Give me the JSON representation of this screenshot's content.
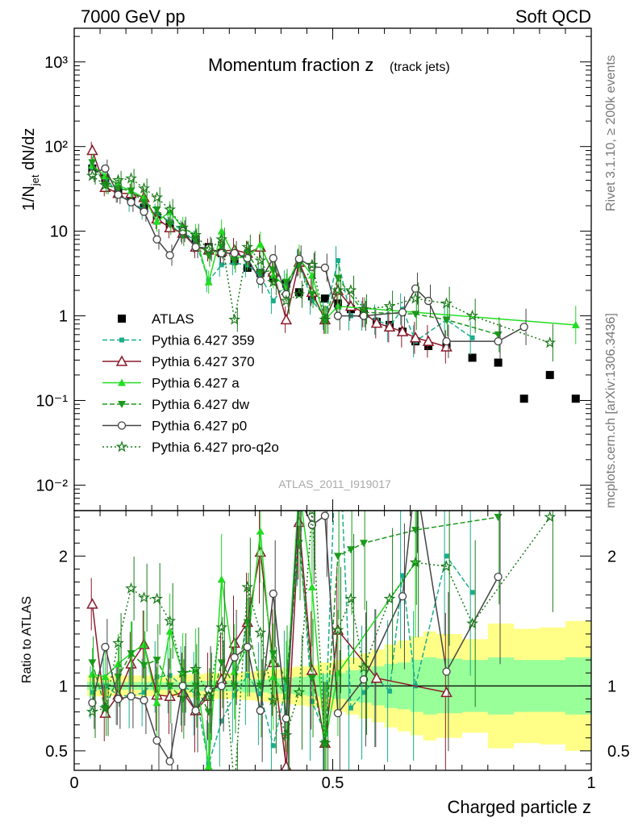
{
  "header": {
    "left": "7000 GeV pp",
    "right": "Soft QCD",
    "side_top": "Rivet 3.1.10, ≥ 200k events",
    "side_bottom": "mcplots.cern.ch [arXiv:1306.3436]",
    "watermark": "ATLAS_2011_I919017"
  },
  "chart_data": [
    {
      "type": "scatter",
      "title": "Momentum fraction z",
      "title_sub": "(track jets)",
      "ylabel": "1/N_jet dN/dz",
      "yscale": "log",
      "ylim": [
        0.005,
        2500
      ],
      "xlim": [
        0,
        1
      ],
      "ytick_labels": [
        "10⁻²",
        "10⁻¹",
        "1",
        "10",
        "10²",
        "10³"
      ],
      "ytick_values": [
        0.01,
        0.1,
        1,
        10,
        100,
        1000
      ],
      "legend_position": "left-middle",
      "series": [
        {
          "name": "ATLAS",
          "color": "#000000",
          "marker": "square",
          "line": "none",
          "x": [
            0.035,
            0.06,
            0.085,
            0.11,
            0.135,
            0.16,
            0.185,
            0.21,
            0.235,
            0.26,
            0.285,
            0.31,
            0.335,
            0.36,
            0.385,
            0.41,
            0.435,
            0.46,
            0.485,
            0.51,
            0.535,
            0.56,
            0.585,
            0.61,
            0.635,
            0.66,
            0.685,
            0.72,
            0.77,
            0.82,
            0.87,
            0.92,
            0.97
          ],
          "y": [
            55,
            42,
            30,
            24,
            19,
            15,
            12,
            10,
            8,
            6.5,
            5.5,
            4.5,
            3.7,
            3.2,
            2.8,
            2.4,
            1.9,
            1.7,
            1.6,
            1.4,
            1.2,
            1.05,
            0.85,
            0.78,
            0.65,
            0.5,
            0.44,
            0.45,
            0.32,
            0.28,
            0.105,
            0.2,
            0.105
          ]
        },
        {
          "name": "Pythia 6.427 359",
          "color": "#1aae8a",
          "marker": "square-small",
          "line": "dashed",
          "x": [
            0.035,
            0.06,
            0.085,
            0.11,
            0.135,
            0.16,
            0.185,
            0.21,
            0.235,
            0.26,
            0.285,
            0.31,
            0.335,
            0.36,
            0.385,
            0.41,
            0.435,
            0.46,
            0.485,
            0.51,
            0.535,
            0.56,
            0.585,
            0.61,
            0.635,
            0.66,
            0.72,
            0.77
          ],
          "y": [
            52,
            42,
            28,
            22,
            18,
            16,
            13,
            10,
            7.5,
            2.6,
            4,
            4.2,
            4,
            3,
            1.5,
            2.4,
            4.2,
            1.5,
            1,
            4.5,
            1,
            1,
            0.9,
            0.75,
            1.2,
            0.5,
            0.9,
            0.55
          ]
        },
        {
          "name": "Pythia 6.427 370",
          "color": "#8b1a2b",
          "marker": "triangle-open",
          "line": "solid",
          "x": [
            0.035,
            0.06,
            0.085,
            0.11,
            0.135,
            0.16,
            0.185,
            0.21,
            0.235,
            0.26,
            0.285,
            0.31,
            0.335,
            0.36,
            0.385,
            0.41,
            0.435,
            0.46,
            0.485,
            0.51,
            0.535,
            0.56,
            0.585,
            0.61,
            0.635,
            0.66,
            0.685,
            0.72
          ],
          "y": [
            90,
            33,
            28,
            28,
            25,
            14,
            11,
            9.5,
            6.5,
            6,
            5.8,
            6,
            5.5,
            6.5,
            3.3,
            0.9,
            4.3,
            1.9,
            0.9,
            2,
            1.3,
            1.1,
            0.82,
            0.74,
            0.65,
            0.55,
            0.5,
            0.43
          ]
        },
        {
          "name": "Pythia 6.427 a",
          "color": "#22dd22",
          "marker": "triangle",
          "line": "solid",
          "x": [
            0.035,
            0.06,
            0.085,
            0.11,
            0.135,
            0.16,
            0.185,
            0.21,
            0.235,
            0.26,
            0.285,
            0.31,
            0.335,
            0.36,
            0.385,
            0.41,
            0.435,
            0.46,
            0.485,
            0.51,
            0.97
          ],
          "y": [
            60,
            45,
            35,
            30,
            25,
            13,
            17,
            11,
            9,
            2.5,
            10,
            5,
            4.8,
            7,
            3,
            2.2,
            4.8,
            3,
            0.9,
            1.3,
            0.78
          ]
        },
        {
          "name": "Pythia 6.427 dw",
          "color": "#1a9a1a",
          "marker": "triangle-down",
          "line": "dashed",
          "x": [
            0.035,
            0.06,
            0.085,
            0.11,
            0.135,
            0.16,
            0.185,
            0.21,
            0.235,
            0.26,
            0.285,
            0.31,
            0.335,
            0.36,
            0.385,
            0.41,
            0.435,
            0.46,
            0.485,
            0.51,
            0.56,
            0.66,
            0.72,
            0.82
          ],
          "y": [
            65,
            35,
            32,
            30,
            22,
            18,
            12,
            9,
            8,
            5.2,
            6.5,
            4.5,
            5.5,
            3.2,
            3.5,
            2.5,
            4,
            1.8,
            0.9,
            2.8,
            1.1,
            1.05,
            0.9,
            0.6
          ]
        },
        {
          "name": "Pythia 6.427 p0",
          "color": "#444444",
          "marker": "circle-open",
          "line": "solid",
          "x": [
            0.035,
            0.06,
            0.085,
            0.11,
            0.135,
            0.16,
            0.185,
            0.21,
            0.235,
            0.26,
            0.285,
            0.31,
            0.335,
            0.36,
            0.385,
            0.41,
            0.435,
            0.46,
            0.485,
            0.51,
            0.56,
            0.635,
            0.66,
            0.685,
            0.72,
            0.82,
            0.87
          ],
          "y": [
            48,
            55,
            27,
            22,
            17,
            8,
            5.2,
            10,
            6.5,
            6.3,
            5.5,
            5.5,
            4.8,
            2.6,
            4.8,
            1.8,
            4.7,
            3.8,
            3.7,
            1,
            1,
            1.1,
            2.1,
            1.5,
            0.5,
            0.5,
            0.74
          ]
        },
        {
          "name": "Pythia 6.427 pro-q2o",
          "color": "#1a7a1a",
          "marker": "star",
          "line": "dotted",
          "x": [
            0.035,
            0.06,
            0.085,
            0.11,
            0.135,
            0.16,
            0.185,
            0.21,
            0.235,
            0.26,
            0.285,
            0.31,
            0.335,
            0.36,
            0.385,
            0.41,
            0.435,
            0.46,
            0.485,
            0.51,
            0.535,
            0.56,
            0.61,
            0.66,
            0.72,
            0.77,
            0.92
          ],
          "y": [
            45,
            35,
            40,
            42,
            32,
            25,
            18,
            11,
            9,
            6,
            8,
            0.9,
            6.5,
            4.5,
            2.5,
            1.5,
            1.8,
            4,
            0.9,
            2,
            2,
            1.2,
            1.3,
            1.6,
            1.4,
            1,
            0.48
          ]
        }
      ]
    },
    {
      "type": "line",
      "ylabel": "Ratio to ATLAS",
      "xlabel": "Charged particle z",
      "xlim": [
        0,
        1
      ],
      "ylim": [
        0.35,
        2.35
      ],
      "xtick_labels": [
        "0",
        "0.5",
        "1"
      ],
      "xtick_values": [
        0,
        0.5,
        1
      ],
      "ytick_labels": [
        "0.5",
        "1",
        "2"
      ],
      "ytick_values": [
        0.5,
        1,
        2
      ],
      "band_outer": {
        "color": "#ffff88",
        "edges": [
          0.025,
          0.05,
          0.075,
          0.1,
          0.125,
          0.15,
          0.175,
          0.2,
          0.225,
          0.25,
          0.275,
          0.3,
          0.325,
          0.35,
          0.375,
          0.4,
          0.425,
          0.45,
          0.475,
          0.5,
          0.525,
          0.55,
          0.575,
          0.6,
          0.625,
          0.65,
          0.675,
          0.7,
          0.75,
          0.8,
          0.85,
          0.9,
          0.95,
          1.0
        ],
        "half": [
          0.08,
          0.08,
          0.08,
          0.08,
          0.08,
          0.08,
          0.08,
          0.09,
          0.09,
          0.1,
          0.1,
          0.1,
          0.11,
          0.12,
          0.13,
          0.14,
          0.15,
          0.16,
          0.18,
          0.2,
          0.22,
          0.25,
          0.28,
          0.32,
          0.35,
          0.38,
          0.42,
          0.4,
          0.36,
          0.48,
          0.44,
          0.45,
          0.5
        ]
      },
      "band_inner": {
        "color": "#99ff99",
        "edges": [
          0.025,
          0.05,
          0.075,
          0.1,
          0.125,
          0.15,
          0.175,
          0.2,
          0.225,
          0.25,
          0.275,
          0.3,
          0.325,
          0.35,
          0.375,
          0.4,
          0.425,
          0.45,
          0.475,
          0.5,
          0.525,
          0.55,
          0.575,
          0.6,
          0.625,
          0.65,
          0.675,
          0.7,
          0.75,
          0.8,
          0.85,
          0.9,
          0.95,
          1.0
        ],
        "half": [
          0.03,
          0.03,
          0.03,
          0.03,
          0.03,
          0.03,
          0.03,
          0.03,
          0.04,
          0.04,
          0.04,
          0.04,
          0.05,
          0.05,
          0.06,
          0.06,
          0.07,
          0.08,
          0.09,
          0.1,
          0.12,
          0.13,
          0.15,
          0.17,
          0.18,
          0.2,
          0.22,
          0.21,
          0.2,
          0.22,
          0.2,
          0.2,
          0.22
        ]
      },
      "series": [
        {
          "name": "Pythia 6.427 359",
          "color": "#1aae8a",
          "line": "dashed",
          "x": [
            0.035,
            0.06,
            0.085,
            0.11,
            0.135,
            0.16,
            0.185,
            0.21,
            0.235,
            0.26,
            0.285,
            0.31,
            0.335,
            0.36,
            0.385,
            0.41,
            0.435,
            0.46,
            0.485,
            0.51,
            0.535,
            0.56,
            0.585,
            0.61,
            0.635,
            0.66,
            0.72,
            0.77
          ],
          "y": [
            0.95,
            1.0,
            0.93,
            0.92,
            0.95,
            1.07,
            1.08,
            1.0,
            0.94,
            0.4,
            0.73,
            0.93,
            1.08,
            0.94,
            0.54,
            1.0,
            2.21,
            0.88,
            0.63,
            3.2,
            0.83,
            0.95,
            1.06,
            0.96,
            1.85,
            1.0,
            2.0,
            1.72
          ]
        },
        {
          "name": "Pythia 6.427 370",
          "color": "#8b1a2b",
          "line": "solid",
          "x": [
            0.035,
            0.06,
            0.085,
            0.11,
            0.135,
            0.16,
            0.185,
            0.21,
            0.235,
            0.26,
            0.285,
            0.31,
            0.335,
            0.36,
            0.385,
            0.41,
            0.435,
            0.46,
            0.485,
            0.51,
            0.585,
            0.72
          ],
          "y": [
            1.63,
            0.79,
            0.93,
            1.17,
            1.32,
            0.93,
            0.92,
            0.95,
            0.81,
            0.92,
            1.05,
            1.33,
            1.49,
            2.03,
            1.18,
            0.38,
            2.26,
            1.12,
            0.56,
            1.43,
            1.06,
            0.95
          ]
        },
        {
          "name": "Pythia 6.427 a",
          "color": "#22dd22",
          "line": "solid",
          "x": [
            0.035,
            0.06,
            0.085,
            0.11,
            0.135,
            0.16,
            0.185,
            0.21,
            0.235,
            0.26,
            0.285,
            0.31,
            0.335,
            0.36,
            0.385,
            0.41,
            0.435,
            0.46,
            0.485,
            0.51,
            0.66
          ],
          "y": [
            1.09,
            1.07,
            1.17,
            1.25,
            1.32,
            0.87,
            1.42,
            1.1,
            1.12,
            0.38,
            1.82,
            1.11,
            1.3,
            2.19,
            1.07,
            0.92,
            2.53,
            1.76,
            0.56,
            1.1,
            1.95
          ]
        },
        {
          "name": "Pythia 6.427 dw",
          "color": "#1a9a1a",
          "line": "dashed",
          "x": [
            0.035,
            0.06,
            0.085,
            0.11,
            0.135,
            0.16,
            0.185,
            0.21,
            0.235,
            0.26,
            0.285,
            0.31,
            0.335,
            0.36,
            0.385,
            0.41,
            0.435,
            0.46,
            0.485,
            0.51,
            0.535,
            0.56,
            0.66,
            0.82
          ],
          "y": [
            1.18,
            0.83,
            1.07,
            1.25,
            1.16,
            1.2,
            1.0,
            0.9,
            1.0,
            0.8,
            1.18,
            1.0,
            1.49,
            1.0,
            1.25,
            1.04,
            2.1,
            1.06,
            0.56,
            2.0,
            2.05,
            2.1,
            2.2,
            2.3
          ]
        },
        {
          "name": "Pythia 6.427 p0",
          "color": "#444444",
          "line": "solid",
          "x": [
            0.035,
            0.06,
            0.085,
            0.11,
            0.135,
            0.16,
            0.185,
            0.21,
            0.235,
            0.26,
            0.285,
            0.31,
            0.335,
            0.36,
            0.385,
            0.41,
            0.435,
            0.46,
            0.485,
            0.51,
            0.56,
            0.635,
            0.66,
            0.72,
            0.82
          ],
          "y": [
            0.87,
            1.3,
            0.9,
            0.92,
            0.89,
            0.58,
            0.42,
            1.0,
            0.81,
            0.97,
            1.0,
            1.22,
            1.3,
            0.81,
            1.71,
            0.75,
            2.45,
            2.24,
            2.31,
            0.79,
            1.05,
            1.69,
            2.6,
            1.11,
            1.84
          ]
        },
        {
          "name": "Pythia 6.427 pro-q2o",
          "color": "#1a7a1a",
          "line": "dotted",
          "x": [
            0.035,
            0.06,
            0.085,
            0.11,
            0.135,
            0.16,
            0.185,
            0.21,
            0.235,
            0.26,
            0.285,
            0.31,
            0.335,
            0.36,
            0.385,
            0.41,
            0.435,
            0.46,
            0.485,
            0.51,
            0.535,
            0.56,
            0.61,
            0.66,
            0.72,
            0.77,
            0.92
          ],
          "y": [
            0.8,
            0.83,
            1.33,
            1.75,
            1.68,
            1.67,
            1.5,
            1.1,
            1.13,
            0.92,
            1.45,
            0.2,
            1.76,
            1.41,
            0.89,
            0.62,
            0.95,
            2.35,
            0.56,
            1.43,
            1.67,
            1.14,
            1.67,
            1.95,
            1.92,
            1.48,
            2.3
          ]
        }
      ]
    }
  ]
}
